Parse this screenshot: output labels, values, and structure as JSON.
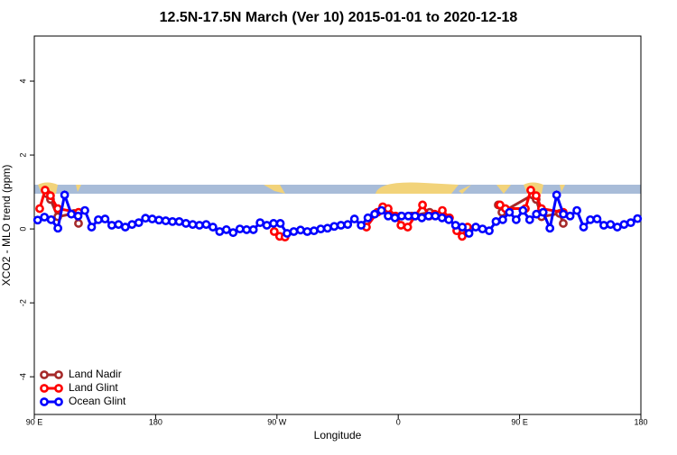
{
  "chart_data": {
    "type": "line",
    "title": "12.5N-17.5N March (Ver 10)   2015-01-01 to 2020-12-18",
    "x_label": "Longitude",
    "y_label": "XCO2 - MLO trend (ppm)",
    "xlim": [
      90,
      540
    ],
    "xticks": [
      {
        "value": 90,
        "label": "90 E"
      },
      180,
      {
        "value": 270,
        "label": "90 W"
      },
      {
        "value": 360,
        "label": "0"
      },
      {
        "value": 450,
        "label": "90 E"
      },
      {
        "value": 540,
        "label": "180"
      }
    ],
    "ylim": [
      -5.02,
      5.22
    ],
    "yticks": [
      -4,
      -2,
      0,
      2,
      4
    ],
    "legend": "bottom-left",
    "series": [
      {
        "name": "Land Nadir",
        "color": "#a52a2a",
        "x": [
          99.4,
          102,
          107.4,
          119.5,
          122.8,
          240,
          362,
          370,
          383.3,
          420,
          434.2,
          436.9,
          459.7,
          462.3,
          466.3,
          479.7,
          482.4
        ],
        "values": [
          0.95,
          0.8,
          0.33,
          0.42,
          0.15,
          null,
          0.35,
          0.35,
          0.45,
          null,
          0.65,
          0.45,
          0.92,
          0.8,
          0.33,
          0.42,
          0.15
        ]
      },
      {
        "name": "Land Glint",
        "color": "#ff0000",
        "x": [
          94,
          98,
          102,
          107.4,
          122.8,
          200,
          268,
          272,
          276,
          310,
          336.4,
          344.5,
          348.5,
          352.5,
          358,
          362,
          367,
          372.6,
          378,
          383,
          387,
          392.7,
          398,
          403.4,
          407.4,
          411.4,
          425,
          435.5,
          439.5,
          454.3,
          458.3,
          462.3,
          466.3,
          482.4
        ],
        "values": [
          0.55,
          1.05,
          0.9,
          0.55,
          0.45,
          null,
          -0.07,
          -0.2,
          -0.22,
          null,
          0.05,
          0.45,
          0.6,
          0.55,
          0.35,
          0.1,
          0.05,
          0.35,
          0.65,
          0.35,
          0.4,
          0.5,
          0.3,
          -0.05,
          -0.2,
          0.05,
          null,
          0.65,
          0.55,
          0.55,
          1.05,
          0.9,
          0.55,
          0.45
        ]
      },
      {
        "name": "Ocean Glint",
        "color": "#0000ff",
        "x": [
          92.5,
          97.5,
          102.5,
          107.5,
          112.5,
          117.5,
          122.5,
          127.5,
          132.5,
          137.5,
          142.5,
          147.5,
          152.5,
          157.5,
          162.5,
          167.5,
          172.5,
          177.5,
          182.5,
          187.5,
          192.5,
          197.5,
          202.5,
          207.5,
          212.5,
          217.5,
          222.5,
          227.5,
          232.5,
          237.5,
          242.5,
          247.5,
          252.5,
          257.5,
          262.5,
          267.5,
          272.5,
          277.5,
          282.5,
          287.5,
          292.5,
          297.5,
          302.5,
          307.5,
          312.5,
          317.5,
          322.5,
          327.5,
          332.5,
          337.5,
          342.5,
          347.5,
          352.5,
          357.5,
          362.5,
          367.5,
          372.5,
          377.5,
          382.5,
          387.5,
          392.5,
          397.5,
          402.5,
          407.5,
          412.5,
          417.5,
          422.5,
          427.5,
          432.5,
          437.5,
          442.5,
          447.5,
          452.5,
          457.5,
          462.5,
          467.5,
          472.5,
          477.5,
          482.5,
          487.5,
          492.5,
          497.5,
          502.5,
          507.5,
          512.5,
          517.5,
          522.5,
          527.5,
          532.5,
          537.5
        ],
        "values": [
          0.24,
          0.32,
          0.25,
          0.02,
          0.92,
          0.4,
          0.35,
          0.5,
          0.05,
          0.25,
          0.27,
          0.1,
          0.12,
          0.05,
          0.12,
          0.17,
          0.29,
          0.27,
          0.24,
          0.22,
          0.2,
          0.2,
          0.15,
          0.12,
          0.1,
          0.12,
          0.05,
          -0.07,
          -0.02,
          -0.1,
          0.0,
          -0.02,
          -0.02,
          0.17,
          0.1,
          0.15,
          0.15,
          -0.12,
          -0.07,
          -0.03,
          -0.07,
          -0.05,
          0.0,
          0.02,
          0.07,
          0.1,
          0.12,
          0.27,
          0.1,
          0.3,
          0.4,
          0.5,
          0.35,
          0.3,
          0.35,
          0.35,
          0.35,
          0.3,
          0.35,
          0.35,
          0.3,
          0.25,
          0.1,
          0.05,
          -0.12,
          0.05,
          0.0,
          -0.05,
          0.2,
          0.25,
          0.45,
          0.25,
          0.5,
          0.25,
          0.4,
          0.45,
          0.02,
          0.92,
          0.4,
          0.35,
          0.5,
          0.05,
          0.25,
          0.27,
          0.1,
          0.12,
          0.05,
          0.12,
          0.17,
          0.28
        ]
      }
    ]
  }
}
